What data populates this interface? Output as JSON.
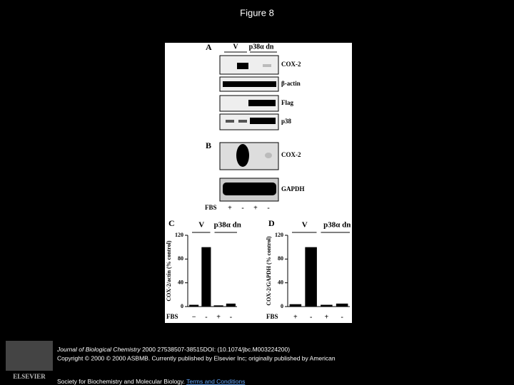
{
  "header": {
    "title": "Figure 8"
  },
  "figure": {
    "panel_a": {
      "label": "A",
      "groups": [
        "V",
        "p38α dn"
      ],
      "bands": [
        "COX-2",
        "β-actin",
        "Flag",
        "p38"
      ]
    },
    "panel_b": {
      "label": "B",
      "bands": [
        "COX-2",
        "GAPDH"
      ],
      "x_label": "FBS",
      "conditions": [
        "+",
        "-",
        "+",
        "-"
      ]
    }
  },
  "chart_data": [
    {
      "type": "bar",
      "panel_label": "C",
      "ylabel": "COX-2/actin (% control)",
      "groups": [
        "V",
        "p38α dn"
      ],
      "x_label": "FBS",
      "categories": [
        "−",
        "-",
        "+",
        "-"
      ],
      "values": [
        3,
        100,
        2,
        5
      ],
      "ylim": [
        0,
        120
      ],
      "yticks": [
        0,
        40,
        80,
        120
      ],
      "color": "#000000"
    },
    {
      "type": "bar",
      "panel_label": "D",
      "ylabel": "COX-2/GAPDH (% control)",
      "groups": [
        "V",
        "p38α dn"
      ],
      "x_label": "FBS",
      "categories": [
        "+",
        "-",
        "+",
        "-"
      ],
      "values": [
        4,
        100,
        3,
        5
      ],
      "ylim": [
        0,
        120
      ],
      "yticks": [
        0,
        40,
        80,
        120
      ],
      "color": "#000000"
    }
  ],
  "footer": {
    "logo": "ELSEVIER",
    "journal": "Journal of Biological Chemistry",
    "details": " 2000 27538507-38515DOI: (10.1074/jbc.M003224200)",
    "copyright": "Copyright © 2000 © 2000 ASBMB. Currently published by Elsevier Inc; originally published by American",
    "society": "Society for Biochemistry and Molecular Biology. ",
    "link": "Terms and Conditions"
  }
}
